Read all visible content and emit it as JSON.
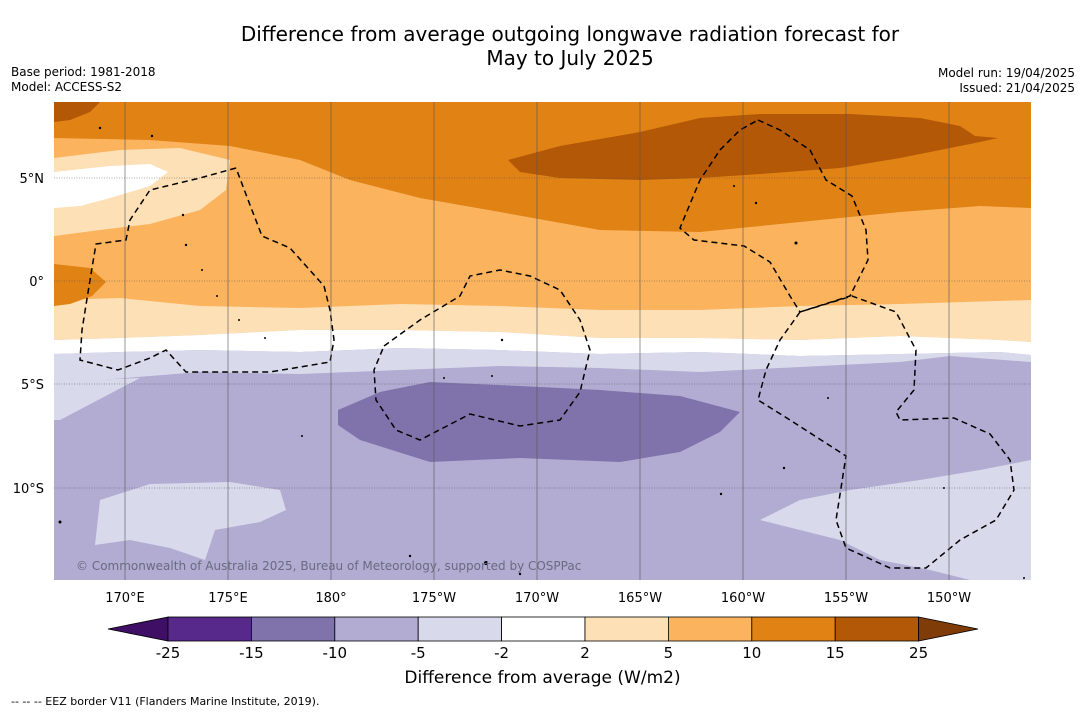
{
  "header": {
    "title_line1": "Difference from average outgoing longwave radiation forecast for",
    "title_line2": "May to July 2025",
    "base_period": "Base period: 1981-2018",
    "model": "Model: ACCESS-S2",
    "model_run": "Model run: 19/04/2025",
    "issued": "Issued: 21/04/2025"
  },
  "map": {
    "lat_labels": [
      "5°N",
      "0°",
      "5°S",
      "10°S"
    ],
    "lon_labels": [
      "170°E",
      "175°E",
      "180°",
      "175°W",
      "170°W",
      "165°W",
      "160°W",
      "155°W",
      "150°W"
    ],
    "copyright": "© Commonwealth of Australia 2025, Bureau of Meteorology, supported by COSPPac",
    "gridlines": true,
    "eez_border_style": "dashed"
  },
  "colorbar": {
    "title": "Difference from average (W/m2)",
    "tick_labels": [
      "-25",
      "-15",
      "-10",
      "-5",
      "-2",
      "2",
      "5",
      "10",
      "15",
      "25"
    ],
    "colors": {
      "extend_low": "#3f0f65",
      "c1": "#57298a",
      "c2": "#8073ac",
      "c3": "#b2abd2",
      "c4": "#d8daeb",
      "c5": "#ffffff",
      "c6": "#fee0b6",
      "c7": "#fbb35e",
      "c8": "#e08214",
      "c9": "#b35806",
      "extend_high": "#7f3b08"
    }
  },
  "legend_note": "--  --  -- EEZ border V11 (Flanders Marine Institute, 2019)."
}
